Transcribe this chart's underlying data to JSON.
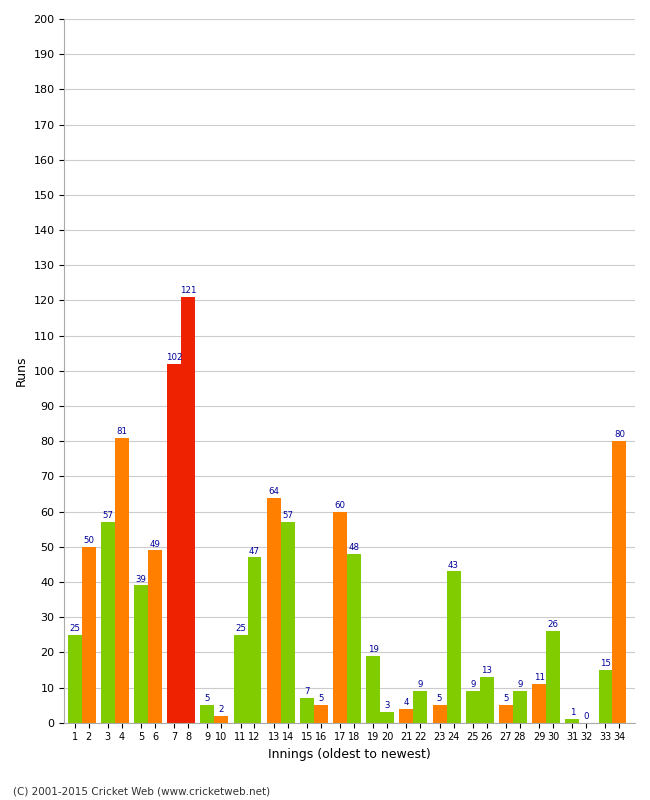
{
  "xlabel": "Innings (oldest to newest)",
  "ylabel": "Runs",
  "ylim": [
    0,
    200
  ],
  "copyright": "(C) 2001-2015 Cricket Web (www.cricketweb.net)",
  "innings": [
    1,
    2,
    3,
    4,
    5,
    6,
    7,
    8,
    9,
    10,
    11,
    12,
    13,
    14,
    15,
    16,
    17,
    18,
    19,
    20,
    21,
    22,
    23,
    24,
    25,
    26,
    27,
    28,
    29,
    30,
    31,
    32,
    33,
    34
  ],
  "values": [
    25,
    50,
    57,
    81,
    39,
    49,
    102,
    121,
    5,
    2,
    25,
    47,
    64,
    57,
    7,
    5,
    60,
    48,
    19,
    3,
    4,
    9,
    5,
    43,
    9,
    13,
    5,
    9,
    11,
    26,
    1,
    0,
    15,
    80
  ],
  "colors": [
    "#80cc00",
    "#ff8000",
    "#80cc00",
    "#ff8000",
    "#80cc00",
    "#ff8000",
    "#ee2200",
    "#ee2200",
    "#80cc00",
    "#ff8000",
    "#80cc00",
    "#80cc00",
    "#ff8000",
    "#80cc00",
    "#80cc00",
    "#ff8000",
    "#ff8000",
    "#80cc00",
    "#80cc00",
    "#80cc00",
    "#ff8000",
    "#80cc00",
    "#ff8000",
    "#80cc00",
    "#80cc00",
    "#80cc00",
    "#ff8000",
    "#80cc00",
    "#ff8000",
    "#80cc00",
    "#80cc00",
    "#ff8000",
    "#80cc00",
    "#ff8000"
  ],
  "label_color": "#000099",
  "background_color": "#ffffff",
  "grid_color": "#cccccc",
  "fig_width": 6.5,
  "fig_height": 8.0,
  "dpi": 100
}
